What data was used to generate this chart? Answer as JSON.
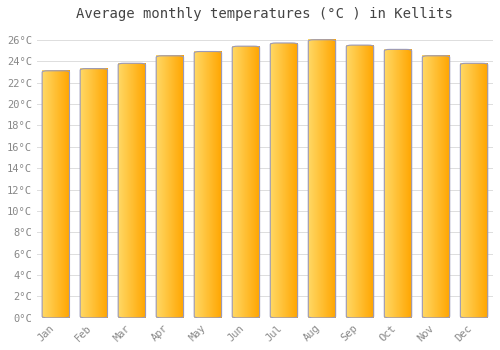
{
  "title": "Average monthly temperatures (°C ) in Kellits",
  "months": [
    "Jan",
    "Feb",
    "Mar",
    "Apr",
    "May",
    "Jun",
    "Jul",
    "Aug",
    "Sep",
    "Oct",
    "Nov",
    "Dec"
  ],
  "values": [
    23.1,
    23.3,
    23.8,
    24.5,
    24.9,
    25.4,
    25.7,
    26.0,
    25.5,
    25.1,
    24.5,
    23.8
  ],
  "bar_color_left": "#FFD966",
  "bar_color_right": "#FFA500",
  "bar_edge_color": "#9999BB",
  "background_color": "#FFFFFF",
  "plot_bg_color": "#FFFFFF",
  "grid_color": "#DDDDDD",
  "ytick_labels": [
    "0°C",
    "2°C",
    "4°C",
    "6°C",
    "8°C",
    "10°C",
    "12°C",
    "14°C",
    "16°C",
    "18°C",
    "20°C",
    "22°C",
    "24°C",
    "26°C"
  ],
  "ytick_values": [
    0,
    2,
    4,
    6,
    8,
    10,
    12,
    14,
    16,
    18,
    20,
    22,
    24,
    26
  ],
  "ylim": [
    0,
    27
  ],
  "title_fontsize": 10,
  "tick_fontsize": 7.5,
  "tick_font_color": "#888888",
  "title_font_color": "#444444",
  "bar_width": 0.72,
  "figsize": [
    5.0,
    3.5
  ],
  "dpi": 100
}
